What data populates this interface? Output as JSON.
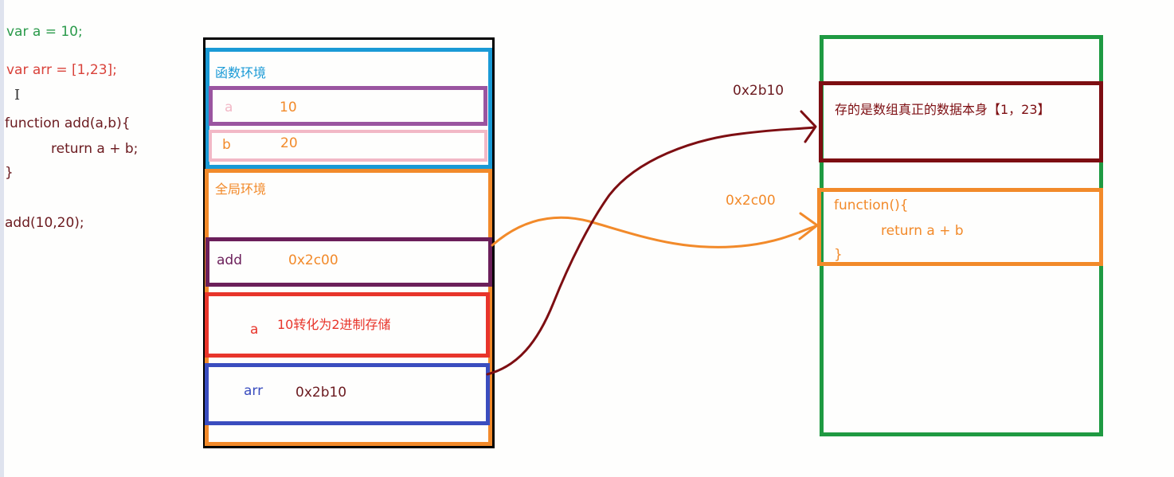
{
  "code": {
    "line1": "var a = 10;",
    "line2": "var arr = [1,23];",
    "cursor_glyph": "I",
    "line3": "function add(a,b){",
    "line4": "return a + b;",
    "line5": "}",
    "line6": "add(10,20);"
  },
  "stack": {
    "function_env_label": "函数环境",
    "var_a_name": "a",
    "var_a_value": "10",
    "var_b_name": "b",
    "var_b_value": "20",
    "global_env_label": "全局环境",
    "add_name": "add",
    "add_value": "0x2c00",
    "global_a_name": "a",
    "global_a_value": "10转化为2进制存储",
    "arr_name": "arr",
    "arr_value": "0x2b10"
  },
  "heap": {
    "addr_array": "0x2b10",
    "array_content": "存的是数组真正的数据本身【1，23】",
    "addr_function": "0x2c00",
    "func_line1": "function(){",
    "func_line2": "return a + b",
    "func_line3": "}"
  },
  "colors": {
    "code_green": "#2a9a4a",
    "code_red": "#d9423a",
    "code_dark": "#6b1a1f",
    "stack_frame": "#000000",
    "function_env": "#1a9ad6",
    "purple": "#9a55a0",
    "pink": "#f2b8c6",
    "orange": "#f28a2a",
    "dark_purple": "#6b1f5a",
    "red": "#e8352b",
    "blue": "#3a4dbf",
    "heap_green": "#1f9a42",
    "maroon": "#7d0e12"
  }
}
